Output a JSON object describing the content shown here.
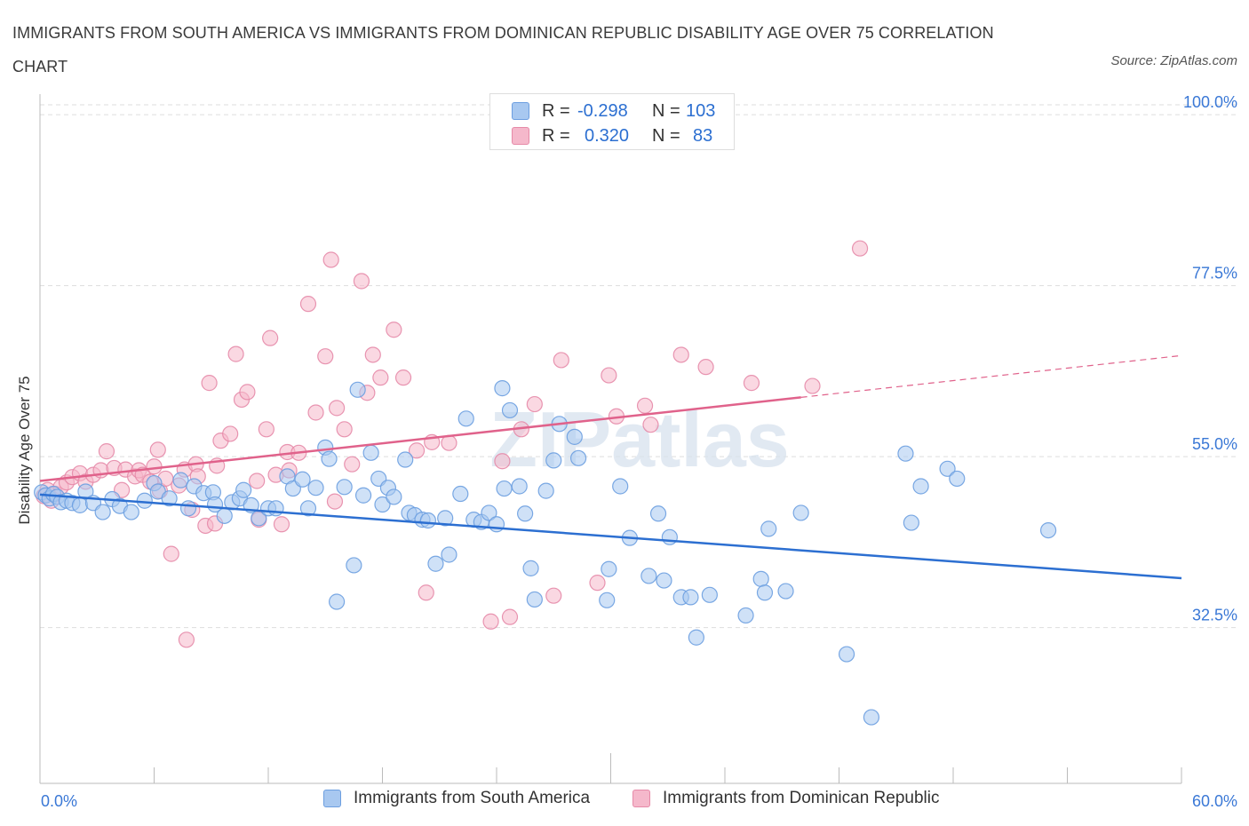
{
  "title": "IMMIGRANTS FROM SOUTH AMERICA VS IMMIGRANTS FROM DOMINICAN REPUBLIC DISABILITY AGE OVER 75 CORRELATION CHART",
  "source": "Source: ZipAtlas.com",
  "watermark": "ZIPatlas",
  "legend": {
    "rows": [
      {
        "r_label": "R =",
        "r_value": "-0.298",
        "n_label": "N =",
        "n_value": "103"
      },
      {
        "r_label": "R =",
        "r_value": "0.320",
        "n_label": "N =",
        "n_value": "83"
      }
    ]
  },
  "colors": {
    "blue_fill": "#a8c8f0",
    "blue_stroke": "#6c9ee0",
    "blue_line": "#2c6fd1",
    "pink_fill": "#f5b8cb",
    "pink_stroke": "#e68aa8",
    "pink_line": "#e0628b",
    "axis_label": "#3a78d6",
    "grid": "#dddddd"
  },
  "chart_data": {
    "type": "scatter",
    "ylabel": "Disability Age Over 75",
    "xlim": [
      0,
      60
    ],
    "ylim": [
      10,
      100
    ],
    "x_tick_labels": [
      {
        "value": 0,
        "label": "0.0%"
      },
      {
        "value": 60,
        "label": "60.0%"
      }
    ],
    "y_tick_labels": [
      {
        "value": 100,
        "label": "100.0%"
      },
      {
        "value": 77.5,
        "label": "77.5%"
      },
      {
        "value": 55,
        "label": "55.0%"
      },
      {
        "value": 32.5,
        "label": "32.5%"
      }
    ],
    "grid": true,
    "legend_position": "top-center",
    "series": [
      {
        "name": "Immigrants from South America",
        "color": "blue",
        "r": -0.298,
        "n": 103,
        "trend": {
          "x0": 0,
          "y0": 50.0,
          "x1": 60,
          "y1": 39.0
        },
        "points": [
          [
            0.1,
            50.3
          ],
          [
            0.3,
            49.9
          ],
          [
            0.5,
            49.5
          ],
          [
            0.7,
            50.1
          ],
          [
            0.9,
            49.7
          ],
          [
            1.1,
            49.0
          ],
          [
            1.4,
            49.2
          ],
          [
            1.7,
            48.9
          ],
          [
            2.1,
            48.6
          ],
          [
            2.4,
            50.4
          ],
          [
            2.8,
            48.9
          ],
          [
            3.3,
            47.7
          ],
          [
            3.8,
            49.4
          ],
          [
            4.2,
            48.5
          ],
          [
            4.8,
            47.7
          ],
          [
            5.5,
            49.2
          ],
          [
            6.0,
            51.5
          ],
          [
            6.2,
            50.4
          ],
          [
            6.8,
            49.5
          ],
          [
            7.4,
            51.9
          ],
          [
            7.8,
            48.2
          ],
          [
            8.1,
            51.1
          ],
          [
            8.6,
            50.2
          ],
          [
            9.1,
            50.3
          ],
          [
            9.2,
            48.7
          ],
          [
            9.7,
            47.2
          ],
          [
            10.1,
            49.0
          ],
          [
            10.5,
            49.5
          ],
          [
            10.7,
            50.6
          ],
          [
            11.1,
            48.6
          ],
          [
            11.5,
            46.9
          ],
          [
            12.0,
            48.2
          ],
          [
            12.4,
            48.2
          ],
          [
            13.0,
            52.4
          ],
          [
            13.3,
            50.8
          ],
          [
            13.8,
            52.0
          ],
          [
            14.1,
            48.2
          ],
          [
            14.5,
            50.9
          ],
          [
            15.0,
            56.2
          ],
          [
            15.2,
            54.7
          ],
          [
            15.6,
            35.9
          ],
          [
            16.0,
            51.0
          ],
          [
            16.5,
            40.7
          ],
          [
            16.7,
            63.8
          ],
          [
            17.0,
            49.9
          ],
          [
            17.4,
            55.5
          ],
          [
            17.8,
            52.1
          ],
          [
            18.0,
            48.7
          ],
          [
            18.3,
            50.9
          ],
          [
            18.6,
            49.7
          ],
          [
            19.2,
            54.6
          ],
          [
            19.4,
            47.6
          ],
          [
            19.7,
            47.3
          ],
          [
            20.1,
            46.7
          ],
          [
            20.4,
            46.6
          ],
          [
            20.8,
            40.9
          ],
          [
            21.3,
            46.9
          ],
          [
            21.5,
            42.1
          ],
          [
            22.1,
            50.1
          ],
          [
            22.4,
            60.0
          ],
          [
            22.8,
            46.7
          ],
          [
            23.2,
            46.4
          ],
          [
            23.6,
            47.6
          ],
          [
            24.0,
            46.1
          ],
          [
            24.3,
            64.0
          ],
          [
            24.4,
            50.8
          ],
          [
            24.7,
            61.1
          ],
          [
            25.2,
            51.1
          ],
          [
            25.5,
            47.5
          ],
          [
            25.8,
            40.3
          ],
          [
            26.0,
            36.2
          ],
          [
            26.6,
            50.5
          ],
          [
            27.0,
            54.5
          ],
          [
            27.3,
            59.3
          ],
          [
            28.1,
            57.6
          ],
          [
            28.3,
            54.8
          ],
          [
            29.8,
            36.1
          ],
          [
            29.9,
            40.2
          ],
          [
            30.5,
            51.1
          ],
          [
            31.0,
            44.3
          ],
          [
            32.0,
            39.3
          ],
          [
            32.5,
            47.5
          ],
          [
            32.8,
            38.7
          ],
          [
            33.1,
            44.4
          ],
          [
            33.7,
            36.5
          ],
          [
            34.2,
            36.5
          ],
          [
            34.5,
            31.2
          ],
          [
            35.2,
            36.8
          ],
          [
            37.1,
            34.1
          ],
          [
            37.9,
            38.9
          ],
          [
            38.1,
            37.1
          ],
          [
            38.3,
            45.5
          ],
          [
            39.2,
            37.3
          ],
          [
            40.0,
            47.6
          ],
          [
            42.4,
            29.0
          ],
          [
            43.7,
            20.7
          ],
          [
            45.5,
            55.4
          ],
          [
            45.8,
            46.3
          ],
          [
            46.3,
            51.1
          ],
          [
            47.7,
            53.4
          ],
          [
            48.2,
            52.1
          ],
          [
            53.0,
            45.3
          ]
        ]
      },
      {
        "name": "Immigrants from Dominican Republic",
        "color": "pink",
        "r": 0.32,
        "n": 83,
        "trend": {
          "x0": 0,
          "y0": 51.8,
          "x1": 60,
          "y1": 68.3
        },
        "trend_solid_until": 40,
        "points": [
          [
            0.2,
            49.8
          ],
          [
            0.4,
            50.6
          ],
          [
            0.6,
            49.2
          ],
          [
            0.8,
            50.1
          ],
          [
            1.1,
            51.0
          ],
          [
            1.4,
            51.6
          ],
          [
            1.7,
            52.3
          ],
          [
            2.1,
            52.8
          ],
          [
            2.4,
            51.7
          ],
          [
            2.8,
            52.6
          ],
          [
            3.2,
            53.2
          ],
          [
            3.5,
            55.7
          ],
          [
            3.9,
            53.5
          ],
          [
            4.3,
            50.6
          ],
          [
            4.5,
            53.3
          ],
          [
            5.0,
            52.4
          ],
          [
            5.2,
            53.2
          ],
          [
            5.4,
            52.6
          ],
          [
            5.8,
            51.7
          ],
          [
            6.0,
            53.7
          ],
          [
            6.2,
            55.9
          ],
          [
            6.3,
            50.5
          ],
          [
            6.6,
            52.1
          ],
          [
            6.9,
            42.2
          ],
          [
            7.3,
            51.2
          ],
          [
            7.6,
            53.3
          ],
          [
            7.7,
            30.9
          ],
          [
            8.0,
            48.0
          ],
          [
            8.2,
            54.0
          ],
          [
            8.3,
            52.4
          ],
          [
            8.7,
            45.9
          ],
          [
            8.9,
            64.7
          ],
          [
            9.2,
            46.2
          ],
          [
            9.3,
            53.8
          ],
          [
            9.5,
            57.1
          ],
          [
            10.0,
            58.0
          ],
          [
            10.3,
            68.5
          ],
          [
            10.6,
            62.5
          ],
          [
            10.9,
            63.5
          ],
          [
            11.4,
            51.8
          ],
          [
            11.5,
            46.7
          ],
          [
            11.9,
            58.6
          ],
          [
            12.1,
            70.6
          ],
          [
            12.4,
            52.6
          ],
          [
            12.7,
            46.1
          ],
          [
            13.0,
            55.6
          ],
          [
            13.1,
            53.2
          ],
          [
            13.6,
            55.5
          ],
          [
            14.1,
            75.1
          ],
          [
            14.5,
            60.8
          ],
          [
            15.0,
            68.2
          ],
          [
            15.3,
            80.9
          ],
          [
            15.5,
            49.1
          ],
          [
            15.6,
            61.4
          ],
          [
            16.0,
            58.6
          ],
          [
            16.4,
            54.0
          ],
          [
            16.9,
            78.1
          ],
          [
            17.2,
            63.4
          ],
          [
            17.5,
            68.4
          ],
          [
            17.9,
            65.4
          ],
          [
            18.6,
            71.7
          ],
          [
            19.1,
            65.4
          ],
          [
            19.8,
            55.8
          ],
          [
            20.3,
            37.1
          ],
          [
            20.6,
            56.9
          ],
          [
            21.5,
            56.8
          ],
          [
            23.7,
            33.3
          ],
          [
            24.3,
            54.4
          ],
          [
            24.7,
            33.9
          ],
          [
            25.3,
            58.6
          ],
          [
            26.0,
            61.9
          ],
          [
            27.0,
            36.7
          ],
          [
            27.4,
            67.7
          ],
          [
            29.3,
            38.4
          ],
          [
            29.9,
            65.7
          ],
          [
            30.3,
            60.3
          ],
          [
            31.8,
            61.7
          ],
          [
            32.1,
            59.2
          ],
          [
            33.7,
            68.4
          ],
          [
            35.0,
            66.8
          ],
          [
            37.4,
            64.7
          ],
          [
            40.6,
            64.3
          ],
          [
            43.1,
            82.4
          ]
        ]
      }
    ]
  },
  "bottom_legend": {
    "items": [
      "Immigrants from South America",
      "Immigrants from Dominican Republic"
    ]
  }
}
